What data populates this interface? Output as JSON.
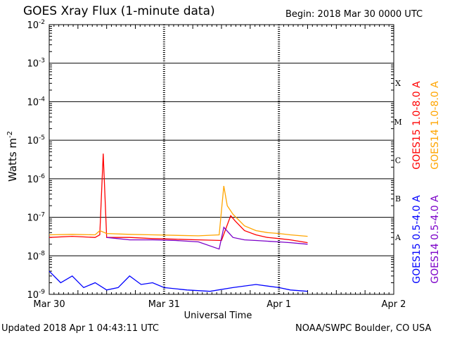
{
  "header": {
    "title": "GOES Xray Flux (1-minute data)",
    "begin": "Begin:  2018 Mar 30 0000 UTC"
  },
  "footer": {
    "updated": "Updated 2018 Apr  1 04:43:11 UTC",
    "credit": "NOAA/SWPC Boulder, CO USA"
  },
  "chart_data": {
    "type": "line",
    "title": "GOES Xray Flux (1-minute data)",
    "xlabel": "Universal Time",
    "ylabel": "Watts m",
    "ylabel_exponent": "-2",
    "yscale": "log",
    "ylim": [
      1e-09,
      0.01
    ],
    "xlim_days": [
      0,
      3
    ],
    "x_tick_labels": [
      "Mar 30",
      "Mar 31",
      "Apr 1",
      "Apr 2"
    ],
    "y_tick_exponents": [
      "-9",
      "-8",
      "-7",
      "-6",
      "-5",
      "-4",
      "-3",
      "-2"
    ],
    "flare_classes": [
      {
        "label": "A",
        "level": 1e-08
      },
      {
        "label": "B",
        "level": 1e-07
      },
      {
        "label": "C",
        "level": 1e-06
      },
      {
        "label": "M",
        "level": 1e-05
      },
      {
        "label": "X",
        "level": 0.0001
      }
    ],
    "grid": true,
    "series": [
      {
        "name": "GOES15 1.0-8.0 A",
        "color": "#ff0000",
        "x": [
          0,
          0.2,
          0.4,
          0.44,
          0.47,
          0.5,
          0.7,
          0.9,
          1.1,
          1.3,
          1.5,
          1.58,
          1.62,
          1.7,
          1.8,
          1.9,
          2.0,
          2.1,
          2.25
        ],
        "y": [
          3e-08,
          3.2e-08,
          3e-08,
          3.5e-08,
          4.5e-06,
          3e-08,
          3e-08,
          2.8e-08,
          2.7e-08,
          2.6e-08,
          2.5e-08,
          1.1e-07,
          8e-08,
          4.5e-08,
          3.5e-08,
          3e-08,
          2.8e-08,
          2.6e-08,
          2.2e-08
        ]
      },
      {
        "name": "GOES14 1.0-8.0 A",
        "color": "#ffa500",
        "x": [
          0,
          0.2,
          0.4,
          0.44,
          0.5,
          0.7,
          0.9,
          1.1,
          1.3,
          1.48,
          1.52,
          1.55,
          1.6,
          1.7,
          1.8,
          1.9,
          2.0,
          2.1,
          2.25
        ],
        "y": [
          3.5e-08,
          3.6e-08,
          3.5e-08,
          4.5e-08,
          3.8e-08,
          3.6e-08,
          3.5e-08,
          3.4e-08,
          3.3e-08,
          3.5e-08,
          6.5e-07,
          2e-07,
          1.2e-07,
          6e-08,
          4.5e-08,
          4e-08,
          3.8e-08,
          3.5e-08,
          3.2e-08
        ]
      },
      {
        "name": "GOES15 0.5-4.0 A",
        "color": "#0000ff",
        "x": [
          0,
          0.1,
          0.2,
          0.3,
          0.4,
          0.5,
          0.6,
          0.7,
          0.8,
          0.9,
          1.0,
          1.2,
          1.4,
          1.6,
          1.8,
          2.0,
          2.1,
          2.25
        ],
        "y": [
          4e-09,
          2e-09,
          3e-09,
          1.5e-09,
          2e-09,
          1.3e-09,
          1.5e-09,
          3e-09,
          1.8e-09,
          2e-09,
          1.5e-09,
          1.3e-09,
          1.2e-09,
          1.5e-09,
          1.8e-09,
          1.5e-09,
          1.3e-09,
          1.2e-09
        ]
      },
      {
        "name": "GOES14 0.5-4.0 A",
        "color": "#7b00c8",
        "x": [
          0.5,
          0.7,
          0.9,
          1.1,
          1.3,
          1.48,
          1.52,
          1.6,
          1.7,
          1.8,
          1.9,
          2.0,
          2.1,
          2.25
        ],
        "y": [
          3e-08,
          2.6e-08,
          2.6e-08,
          2.5e-08,
          2.3e-08,
          1.5e-08,
          5.5e-08,
          3e-08,
          2.6e-08,
          2.5e-08,
          2.4e-08,
          2.3e-08,
          2.2e-08,
          2e-08
        ]
      }
    ]
  }
}
